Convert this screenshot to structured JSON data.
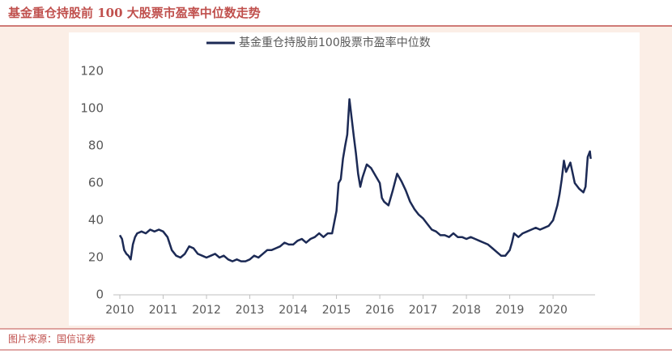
{
  "chart_data": {
    "type": "line",
    "title": "基金重仓持股前 100  大股票市盈率中位数走势",
    "source": "图片来源：国信证券",
    "x": [
      2010.0,
      2010.05,
      2010.1,
      2010.15,
      2010.2,
      2010.25,
      2010.3,
      2010.35,
      2010.4,
      2010.5,
      2010.6,
      2010.7,
      2010.8,
      2010.9,
      2011.0,
      2011.1,
      2011.2,
      2011.3,
      2011.4,
      2011.5,
      2011.6,
      2011.7,
      2011.8,
      2011.9,
      2012.0,
      2012.1,
      2012.2,
      2012.3,
      2012.4,
      2012.5,
      2012.6,
      2012.7,
      2012.8,
      2012.9,
      2013.0,
      2013.1,
      2013.2,
      2013.3,
      2013.4,
      2013.5,
      2013.6,
      2013.7,
      2013.8,
      2013.9,
      2014.0,
      2014.1,
      2014.2,
      2014.3,
      2014.4,
      2014.5,
      2014.6,
      2014.7,
      2014.8,
      2014.9,
      2015.0,
      2015.05,
      2015.1,
      2015.15,
      2015.2,
      2015.25,
      2015.3,
      2015.35,
      2015.4,
      2015.45,
      2015.5,
      2015.55,
      2015.6,
      2015.7,
      2015.8,
      2015.9,
      2016.0,
      2016.05,
      2016.1,
      2016.2,
      2016.3,
      2016.4,
      2016.5,
      2016.6,
      2016.7,
      2016.8,
      2016.9,
      2017.0,
      2017.1,
      2017.2,
      2017.3,
      2017.4,
      2017.5,
      2017.6,
      2017.7,
      2017.8,
      2017.9,
      2018.0,
      2018.1,
      2018.2,
      2018.3,
      2018.4,
      2018.5,
      2018.6,
      2018.7,
      2018.8,
      2018.9,
      2019.0,
      2019.05,
      2019.1,
      2019.2,
      2019.3,
      2019.4,
      2019.5,
      2019.6,
      2019.7,
      2019.8,
      2019.9,
      2020.0,
      2020.05,
      2020.1,
      2020.15,
      2020.2,
      2020.25,
      2020.3,
      2020.4,
      2020.5,
      2020.6,
      2020.7,
      2020.75,
      2020.8,
      2020.85,
      2020.87
    ],
    "series": [
      {
        "name": "基金重仓持股前100股票市盈率中位数",
        "color": "#1c2a55",
        "values": [
          32,
          30,
          24,
          22,
          21,
          19,
          27,
          31,
          33,
          34,
          33,
          35,
          34,
          35,
          34,
          31,
          24,
          21,
          20,
          22,
          26,
          25,
          22,
          21,
          20,
          21,
          22,
          20,
          21,
          19,
          18,
          19,
          18,
          18,
          19,
          21,
          20,
          22,
          24,
          24,
          25,
          26,
          28,
          27,
          27,
          29,
          30,
          28,
          30,
          31,
          33,
          31,
          33,
          33,
          45,
          60,
          62,
          73,
          80,
          86,
          105,
          95,
          85,
          76,
          65,
          58,
          63,
          70,
          68,
          64,
          60,
          52,
          50,
          48,
          56,
          65,
          61,
          56,
          50,
          46,
          43,
          41,
          38,
          35,
          34,
          32,
          32,
          31,
          33,
          31,
          31,
          30,
          31,
          30,
          29,
          28,
          27,
          25,
          23,
          21,
          21,
          24,
          28,
          33,
          31,
          33,
          34,
          35,
          36,
          35,
          36,
          37,
          40,
          44,
          48,
          54,
          62,
          72,
          66,
          71,
          60,
          57,
          55,
          58,
          74,
          77,
          73
        ]
      }
    ],
    "xlim": [
      2009.85,
      2020.97
    ],
    "xticks": [
      2010,
      2011,
      2012,
      2013,
      2014,
      2015,
      2016,
      2017,
      2018,
      2019,
      2020
    ],
    "ylim": [
      0,
      120
    ],
    "yticks": [
      0,
      20,
      40,
      60,
      80,
      100,
      120
    ],
    "legend": "top"
  }
}
